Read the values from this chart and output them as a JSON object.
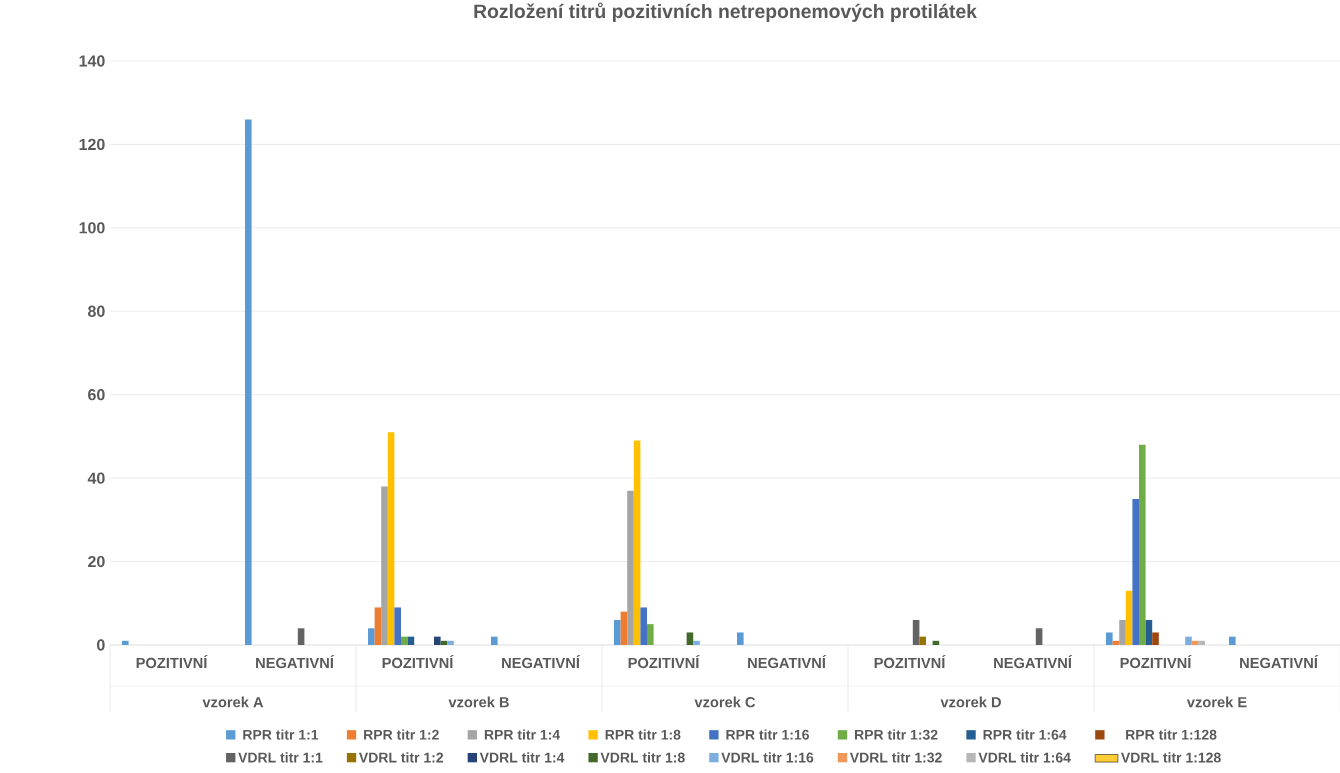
{
  "chart_data": {
    "type": "bar",
    "title": "Rozložení titrů pozitivních netreponemových protilátek",
    "categories": [
      "POZITIVNÍ",
      "NEGATIVNÍ",
      "POZITIVNÍ",
      "NEGATIVNÍ",
      "POZITIVNÍ",
      "NEGATIVNÍ",
      "POZITIVNÍ",
      "NEGATIVNÍ",
      "POZITIVNÍ",
      "NEGATIVNÍ"
    ],
    "annotations": [
      "vzorek A",
      "vzorek B",
      "vzorek C",
      "vzorek D",
      "vzorek E"
    ],
    "series": [
      {
        "name": "RPR titr 1:1",
        "color": "#5b9bd5",
        "values": [
          1,
          126,
          4,
          2,
          6,
          3,
          null,
          null,
          3,
          2
        ]
      },
      {
        "name": "RPR titr 1:2",
        "color": "#ed7d31",
        "values": [
          null,
          null,
          9,
          null,
          8,
          null,
          null,
          null,
          1,
          null
        ]
      },
      {
        "name": "RPR titr 1:4",
        "color": "#a5a5a5",
        "values": [
          null,
          null,
          38,
          null,
          37,
          null,
          null,
          null,
          6,
          null
        ]
      },
      {
        "name": "RPR titr 1:8",
        "color": "#ffc000",
        "values": [
          null,
          null,
          51,
          null,
          49,
          null,
          null,
          null,
          13,
          null
        ]
      },
      {
        "name": "RPR titr 1:16",
        "color": "#4472c4",
        "values": [
          null,
          null,
          9,
          null,
          9,
          null,
          null,
          null,
          35,
          null
        ]
      },
      {
        "name": "RPR titr 1:32",
        "color": "#70ad47",
        "values": [
          null,
          null,
          2,
          null,
          5,
          null,
          null,
          null,
          48,
          null
        ]
      },
      {
        "name": "RPR titr 1:64",
        "color": "#255e91",
        "values": [
          null,
          null,
          2,
          null,
          null,
          null,
          null,
          null,
          6,
          null
        ]
      },
      {
        "name": "RPR titr 1:128",
        "color": "#9e480e",
        "values": [
          null,
          null,
          null,
          null,
          null,
          null,
          null,
          null,
          3,
          null
        ]
      },
      {
        "name": "VDRL titr 1:1",
        "color": "#636363",
        "values": [
          null,
          4,
          null,
          null,
          null,
          null,
          6,
          4,
          null,
          null
        ]
      },
      {
        "name": "VDRL titr 1:2",
        "color": "#997300",
        "values": [
          null,
          null,
          null,
          null,
          null,
          null,
          2,
          null,
          null,
          null
        ]
      },
      {
        "name": "VDRL titr 1:4",
        "color": "#264478",
        "values": [
          null,
          null,
          2,
          null,
          null,
          null,
          null,
          null,
          null,
          null
        ]
      },
      {
        "name": "VDRL titr 1:8",
        "color": "#43682b",
        "values": [
          null,
          null,
          1,
          null,
          3,
          null,
          1,
          null,
          null,
          null
        ]
      },
      {
        "name": "VDRL titr 1:16",
        "color": "#7cafdd",
        "values": [
          null,
          null,
          1,
          null,
          1,
          null,
          null,
          null,
          2,
          null
        ]
      },
      {
        "name": "VDRL titr 1:32",
        "color": "#f1975a",
        "values": [
          null,
          null,
          null,
          null,
          null,
          null,
          null,
          null,
          1,
          null
        ]
      },
      {
        "name": "VDRL titr 1:64",
        "color": "#b7b7b7",
        "values": [
          null,
          null,
          null,
          null,
          null,
          null,
          null,
          null,
          1,
          null
        ]
      },
      {
        "name": "VDRL titr 1:128",
        "color": "#ffcd33",
        "values": [
          null,
          null,
          null,
          null,
          null,
          null,
          null,
          null,
          null,
          null
        ]
      }
    ],
    "ylim": [
      0,
      140
    ],
    "yticks": [
      0,
      20,
      40,
      60,
      80,
      100,
      120,
      140
    ],
    "grid": "y",
    "legend": "bottom"
  }
}
